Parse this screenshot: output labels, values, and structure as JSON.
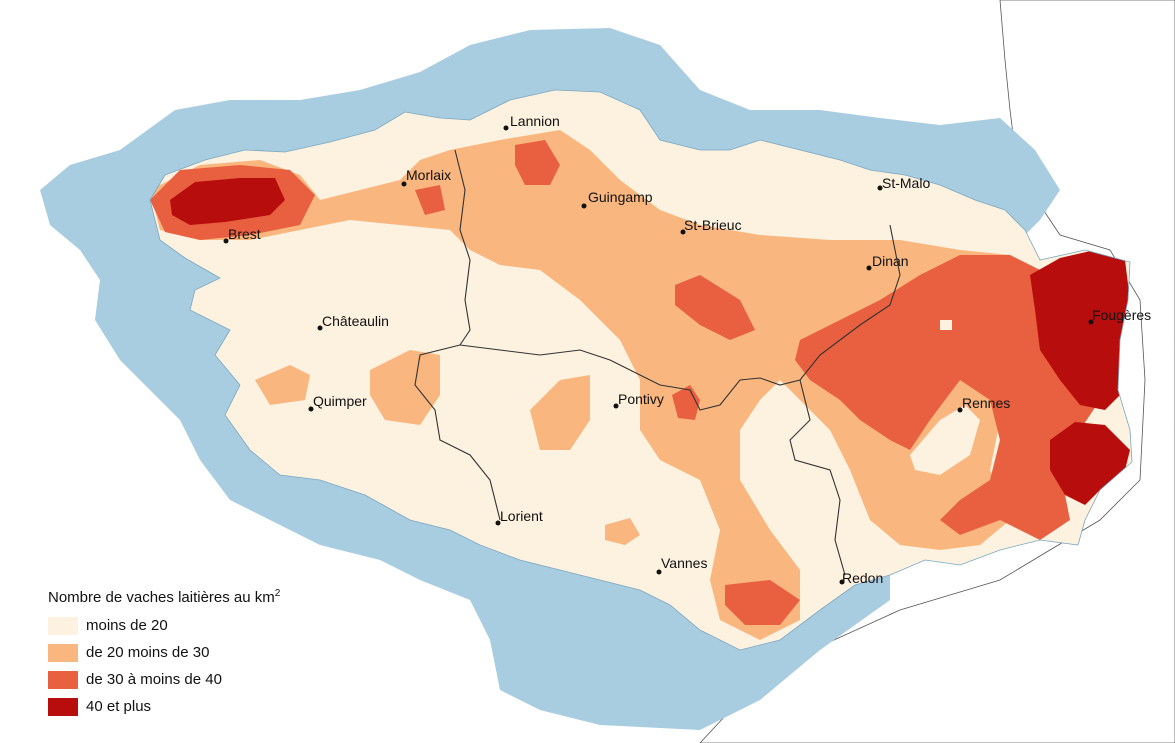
{
  "map": {
    "colors": {
      "sea": "#a9cde0",
      "land_outside": "#ffffff",
      "class_1": "#fdf1df",
      "class_2": "#f9b67e",
      "class_3": "#e8603f",
      "class_4": "#b80d0d",
      "border": "#333333"
    },
    "cities": [
      {
        "name": "Lannion"
      },
      {
        "name": "Morlaix"
      },
      {
        "name": "Guingamp"
      },
      {
        "name": "St-Malo"
      },
      {
        "name": "St-Brieuc"
      },
      {
        "name": "Brest"
      },
      {
        "name": "Dinan"
      },
      {
        "name": "Châteaulin"
      },
      {
        "name": "Fougères"
      },
      {
        "name": "Quimper"
      },
      {
        "name": "Pontivy"
      },
      {
        "name": "Rennes"
      },
      {
        "name": "Lorient"
      },
      {
        "name": "Vannes"
      },
      {
        "name": "Redon"
      }
    ]
  },
  "legend": {
    "title": "Nombre de vaches laitières au km",
    "title_sup": "2",
    "items": [
      {
        "label": "moins de 20",
        "color": "#fdf1df"
      },
      {
        "label": "de 20 moins de 30",
        "color": "#f9b67e"
      },
      {
        "label": "de 30 à moins de 40",
        "color": "#e8603f"
      },
      {
        "label": "40 et plus",
        "color": "#b80d0d"
      }
    ]
  }
}
